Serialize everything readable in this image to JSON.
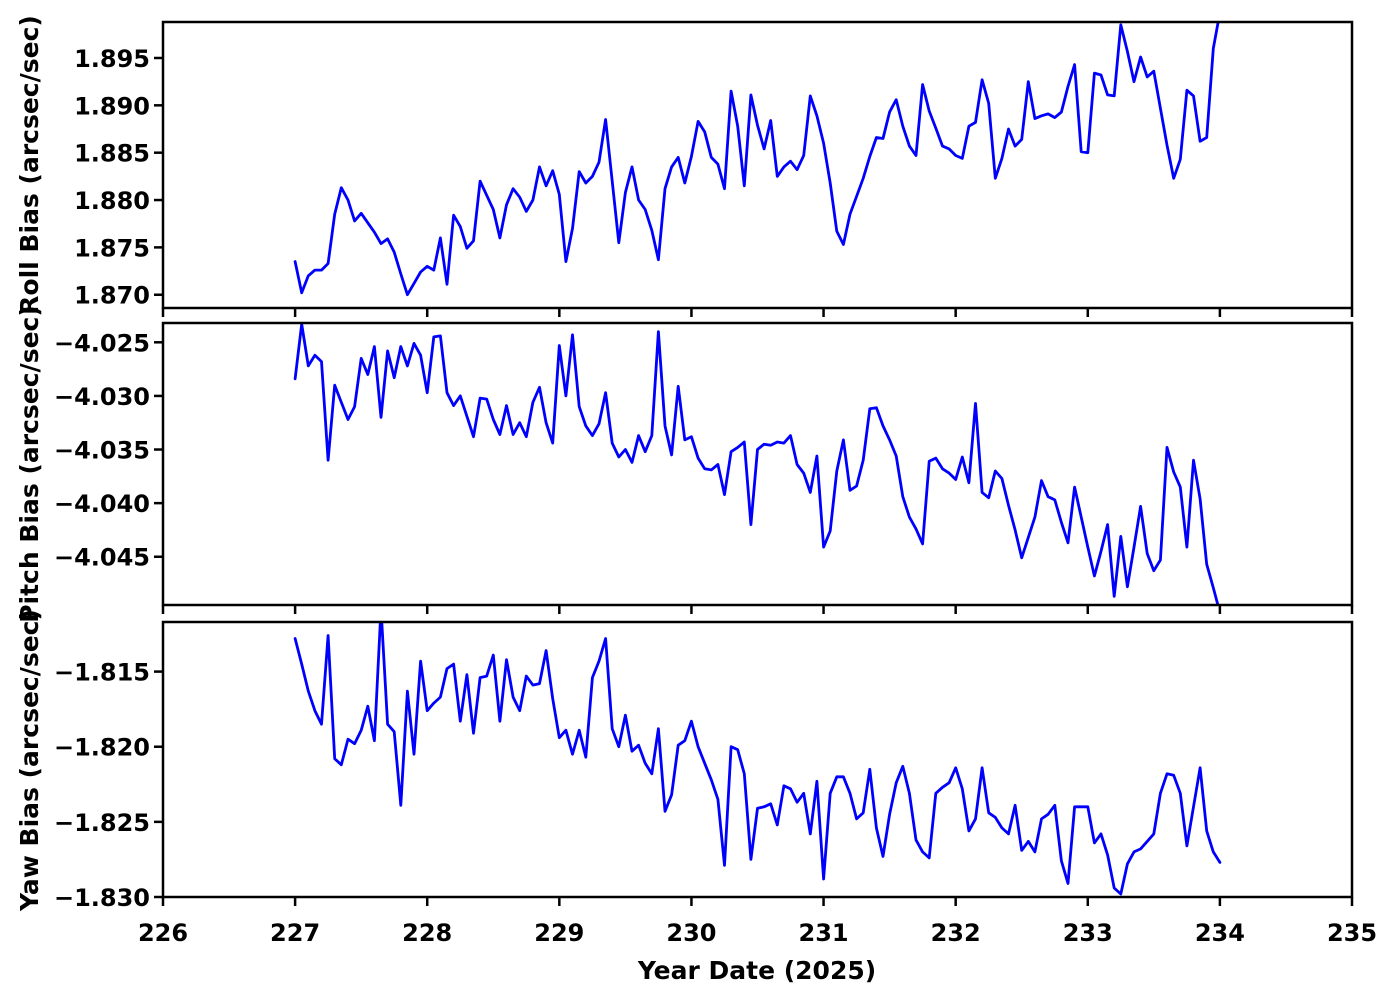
{
  "figure": {
    "background": "#ffffff",
    "line_color": "#0000ff",
    "axis_color": "#000000"
  },
  "xaxis": {
    "label": "Year Date (2025)",
    "lim": [
      226,
      235
    ],
    "ticks": [
      {
        "v": 226,
        "label": "226"
      },
      {
        "v": 227,
        "label": "227"
      },
      {
        "v": 228,
        "label": "228"
      },
      {
        "v": 229,
        "label": "229"
      },
      {
        "v": 230,
        "label": "230"
      },
      {
        "v": 231,
        "label": "231"
      },
      {
        "v": 232,
        "label": "232"
      },
      {
        "v": 233,
        "label": "233"
      },
      {
        "v": 234,
        "label": "234"
      },
      {
        "v": 235,
        "label": "235"
      }
    ]
  },
  "subplots": [
    {
      "ylabel": "Roll Bias (arcsec/sec)",
      "ylim": [
        1.8686,
        1.8988
      ],
      "yticks": [
        {
          "v": 1.87,
          "label": "1.870"
        },
        {
          "v": 1.875,
          "label": "1.875"
        },
        {
          "v": 1.88,
          "label": "1.880"
        },
        {
          "v": 1.885,
          "label": "1.885"
        },
        {
          "v": 1.89,
          "label": "1.890"
        },
        {
          "v": 1.895,
          "label": "1.895"
        }
      ]
    },
    {
      "ylabel": "Pitch Bias (arcsec/sec)",
      "ylim": [
        -4.0495,
        -4.0232
      ],
      "yticks": [
        {
          "v": -4.045,
          "label": "−4.045"
        },
        {
          "v": -4.04,
          "label": "−4.040"
        },
        {
          "v": -4.035,
          "label": "−4.035"
        },
        {
          "v": -4.03,
          "label": "−4.030"
        },
        {
          "v": -4.025,
          "label": "−4.025"
        }
      ]
    },
    {
      "ylabel": "Yaw Bias (arcsec/sec)",
      "ylim": [
        -1.83,
        -1.8117
      ],
      "yticks": [
        {
          "v": -1.83,
          "label": "−1.830"
        },
        {
          "v": -1.825,
          "label": "−1.825"
        },
        {
          "v": -1.82,
          "label": "−1.820"
        },
        {
          "v": -1.815,
          "label": "−1.815"
        }
      ]
    }
  ],
  "chart_data": {
    "type": "line",
    "title": "",
    "xlabel": "Year Date (2025)",
    "x_start": 227.0,
    "x_step": 0.05,
    "x_end": 234.0,
    "x_range_shown": [
      226,
      235
    ],
    "grid": false,
    "legend": "none",
    "series": [
      {
        "name": "Roll Bias",
        "unit": "arcsec/sec",
        "color": "#0000ff",
        "values": [
          1.8735,
          1.8702,
          1.872,
          1.8726,
          1.8726,
          1.8733,
          1.8785,
          1.8813,
          1.88,
          1.8778,
          1.8786,
          1.8776,
          1.8766,
          1.8754,
          1.8759,
          1.8745,
          1.8722,
          1.87,
          1.8712,
          1.8724,
          1.873,
          1.8726,
          1.876,
          1.8711,
          1.8784,
          1.8772,
          1.8749,
          1.8757,
          1.882,
          1.8805,
          1.879,
          1.876,
          1.8795,
          1.8812,
          1.8803,
          1.8788,
          1.88,
          1.8835,
          1.8815,
          1.8831,
          1.8806,
          1.8735,
          1.877,
          1.883,
          1.8818,
          1.8825,
          1.884,
          1.8885,
          1.882,
          1.8755,
          1.8808,
          1.8835,
          1.88,
          1.879,
          1.8768,
          1.8737,
          1.8812,
          1.8835,
          1.8845,
          1.8818,
          1.8846,
          1.8883,
          1.8872,
          1.8845,
          1.8838,
          1.8812,
          1.8915,
          1.8878,
          1.8815,
          1.8911,
          1.8879,
          1.8854,
          1.8884,
          1.8825,
          1.8835,
          1.8841,
          1.8832,
          1.8847,
          1.891,
          1.8889,
          1.886,
          1.8818,
          1.8767,
          1.8753,
          1.8785,
          1.8804,
          1.8823,
          1.8846,
          1.8866,
          1.8865,
          1.8893,
          1.8906,
          1.8878,
          1.8857,
          1.8847,
          1.8922,
          1.8894,
          1.8876,
          1.8857,
          1.8854,
          1.8847,
          1.8844,
          1.8878,
          1.8882,
          1.8927,
          1.8902,
          1.8823,
          1.8844,
          1.8875,
          1.8857,
          1.8864,
          1.8925,
          1.8886,
          1.8889,
          1.8891,
          1.8887,
          1.8893,
          1.892,
          1.8943,
          1.8851,
          1.885,
          1.8934,
          1.8932,
          1.8911,
          1.891,
          1.8985,
          1.8957,
          1.8925,
          1.8951,
          1.893,
          1.8936,
          1.8897,
          1.8858,
          1.8823,
          1.8843,
          1.8916,
          1.891,
          1.8862,
          1.8866,
          1.896,
          1.8998
        ]
      },
      {
        "name": "Pitch Bias",
        "unit": "arcsec/sec",
        "color": "#0000ff",
        "values": [
          -4.0284,
          -4.0233,
          -4.0272,
          -4.0262,
          -4.0268,
          -4.036,
          -4.029,
          -4.0306,
          -4.0322,
          -4.031,
          -4.0265,
          -4.028,
          -4.0254,
          -4.032,
          -4.0258,
          -4.0283,
          -4.0254,
          -4.0272,
          -4.0251,
          -4.0262,
          -4.0297,
          -4.0245,
          -4.0244,
          -4.0297,
          -4.0309,
          -4.03,
          -4.0319,
          -4.0338,
          -4.0302,
          -4.0303,
          -4.0322,
          -4.0336,
          -4.0309,
          -4.0336,
          -4.0325,
          -4.0338,
          -4.0306,
          -4.0292,
          -4.0325,
          -4.0344,
          -4.0253,
          -4.03,
          -4.0243,
          -4.031,
          -4.0328,
          -4.0337,
          -4.0326,
          -4.0297,
          -4.0344,
          -4.0357,
          -4.035,
          -4.0362,
          -4.0337,
          -4.0352,
          -4.0337,
          -4.024,
          -4.0328,
          -4.0355,
          -4.0291,
          -4.0341,
          -4.0338,
          -4.0358,
          -4.0368,
          -4.0369,
          -4.0364,
          -4.0392,
          -4.0352,
          -4.0348,
          -4.0343,
          -4.042,
          -4.035,
          -4.0345,
          -4.0346,
          -4.0343,
          -4.0344,
          -4.0337,
          -4.0364,
          -4.0372,
          -4.039,
          -4.0356,
          -4.0441,
          -4.0426,
          -4.037,
          -4.0341,
          -4.0388,
          -4.0384,
          -4.036,
          -4.0312,
          -4.0311,
          -4.0328,
          -4.0341,
          -4.0356,
          -4.0394,
          -4.0413,
          -4.0424,
          -4.0438,
          -4.0361,
          -4.0358,
          -4.0368,
          -4.0372,
          -4.0378,
          -4.0357,
          -4.0381,
          -4.0307,
          -4.039,
          -4.0395,
          -4.037,
          -4.0377,
          -4.0402,
          -4.0425,
          -4.0451,
          -4.0432,
          -4.0413,
          -4.0379,
          -4.0394,
          -4.0397,
          -4.0418,
          -4.0437,
          -4.0385,
          -4.0413,
          -4.0441,
          -4.0468,
          -4.0445,
          -4.042,
          -4.0487,
          -4.0431,
          -4.0478,
          -4.0441,
          -4.0403,
          -4.0447,
          -4.0463,
          -4.0453,
          -4.0348,
          -4.0371,
          -4.0385,
          -4.0441,
          -4.036,
          -4.0396,
          -4.0457,
          -4.0479,
          -4.0502
        ]
      },
      {
        "name": "Yaw Bias",
        "unit": "arcsec/sec",
        "color": "#0000ff",
        "values": [
          -1.8128,
          -1.8145,
          -1.8163,
          -1.8176,
          -1.8185,
          -1.8126,
          -1.8208,
          -1.8212,
          -1.8195,
          -1.8198,
          -1.8189,
          -1.8173,
          -1.8196,
          -1.8108,
          -1.8185,
          -1.819,
          -1.8239,
          -1.8163,
          -1.8205,
          -1.8143,
          -1.8176,
          -1.8171,
          -1.8167,
          -1.8148,
          -1.8145,
          -1.8183,
          -1.8152,
          -1.8191,
          -1.8154,
          -1.8153,
          -1.8139,
          -1.8183,
          -1.8142,
          -1.8167,
          -1.8176,
          -1.8153,
          -1.8159,
          -1.8158,
          -1.8136,
          -1.8168,
          -1.8194,
          -1.8189,
          -1.8205,
          -1.8189,
          -1.8207,
          -1.8154,
          -1.8143,
          -1.8128,
          -1.8188,
          -1.82,
          -1.8179,
          -1.8203,
          -1.8199,
          -1.8211,
          -1.8218,
          -1.8188,
          -1.8243,
          -1.8232,
          -1.8199,
          -1.8196,
          -1.8183,
          -1.82,
          -1.8211,
          -1.8222,
          -1.8235,
          -1.8279,
          -1.82,
          -1.8202,
          -1.8218,
          -1.8275,
          -1.8241,
          -1.824,
          -1.8238,
          -1.8252,
          -1.8226,
          -1.8228,
          -1.8237,
          -1.8231,
          -1.8258,
          -1.8223,
          -1.8288,
          -1.8231,
          -1.822,
          -1.822,
          -1.8231,
          -1.8248,
          -1.8244,
          -1.8215,
          -1.8254,
          -1.8273,
          -1.8245,
          -1.8224,
          -1.8213,
          -1.8231,
          -1.8262,
          -1.827,
          -1.8274,
          -1.8231,
          -1.8227,
          -1.8224,
          -1.8214,
          -1.8228,
          -1.8256,
          -1.8248,
          -1.8214,
          -1.8244,
          -1.8247,
          -1.8254,
          -1.8258,
          -1.8239,
          -1.8269,
          -1.8263,
          -1.827,
          -1.8248,
          -1.8245,
          -1.8239,
          -1.8276,
          -1.8291,
          -1.824,
          -1.824,
          -1.824,
          -1.8264,
          -1.8258,
          -1.8272,
          -1.8294,
          -1.8298,
          -1.8278,
          -1.827,
          -1.8268,
          -1.8263,
          -1.8258,
          -1.8231,
          -1.8218,
          -1.8219,
          -1.8231,
          -1.8266,
          -1.824,
          -1.8214,
          -1.8256,
          -1.827,
          -1.8277
        ]
      }
    ]
  }
}
